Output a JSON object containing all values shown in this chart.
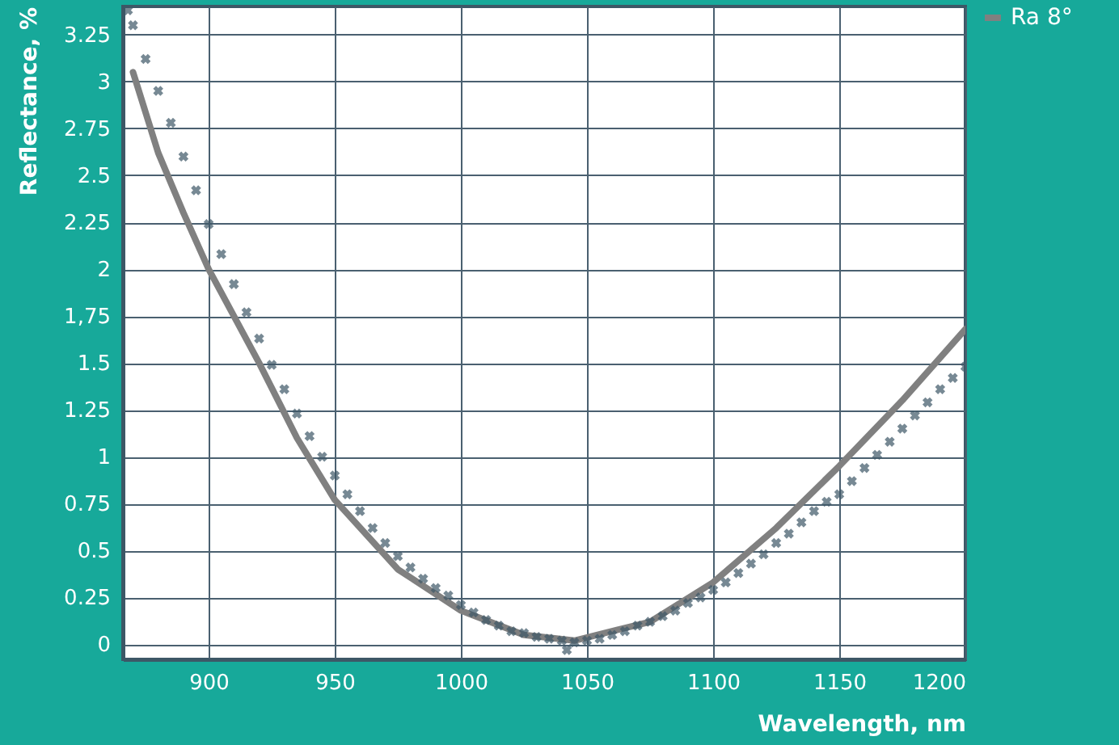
{
  "chart_data": {
    "type": "line",
    "xlabel": "Wavelength, nm",
    "ylabel": "Reflectance, %",
    "xlim": [
      866,
      1200
    ],
    "xticks": [
      900,
      950,
      1000,
      1050,
      1100,
      1150,
      1200
    ],
    "ylim": [
      -0.08,
      3.4
    ],
    "yticks": [
      0,
      0.25,
      0.5,
      0.75,
      1,
      1.25,
      1.5,
      {
        "value": 1.75,
        "label": "1,75"
      },
      2,
      2.25,
      2.5,
      2.75,
      3,
      3.25
    ],
    "grid": true,
    "legend": "top right",
    "series": [
      {
        "name": "Ra 8°",
        "type": "line",
        "color": "#808080",
        "x": [
          870,
          880,
          890,
          900,
          920,
          935,
          950,
          975,
          1000,
          1025,
          1045,
          1075,
          1100,
          1125,
          1150,
          1175,
          1200
        ],
        "values": [
          3.05,
          2.62,
          2.3,
          2.0,
          1.5,
          1.1,
          0.77,
          0.4,
          0.18,
          0.05,
          0.02,
          0.12,
          0.33,
          0.62,
          0.95,
          1.3,
          1.68
        ]
      },
      {
        "type": "scatter",
        "marker": "cross",
        "color": "#3d5766",
        "x": [
          868,
          870,
          875,
          880,
          885,
          890,
          895,
          900,
          905,
          910,
          915,
          920,
          925,
          930,
          935,
          940,
          945,
          950,
          955,
          960,
          965,
          970,
          975,
          980,
          985,
          990,
          995,
          1000,
          1005,
          1010,
          1015,
          1020,
          1025,
          1030,
          1035,
          1040,
          1042,
          1045,
          1050,
          1055,
          1060,
          1065,
          1070,
          1075,
          1080,
          1085,
          1090,
          1095,
          1100,
          1105,
          1110,
          1115,
          1120,
          1125,
          1130,
          1135,
          1140,
          1145,
          1150,
          1155,
          1160,
          1165,
          1170,
          1175,
          1180,
          1185,
          1190,
          1195,
          1200
        ],
        "values": [
          3.38,
          3.3,
          3.12,
          2.95,
          2.78,
          2.6,
          2.42,
          2.24,
          2.08,
          1.92,
          1.77,
          1.63,
          1.49,
          1.36,
          1.23,
          1.11,
          1.0,
          0.9,
          0.8,
          0.71,
          0.62,
          0.54,
          0.47,
          0.41,
          0.35,
          0.3,
          0.26,
          0.21,
          0.17,
          0.13,
          0.1,
          0.07,
          0.06,
          0.04,
          0.03,
          0.02,
          -0.03,
          0.01,
          0.02,
          0.03,
          0.05,
          0.07,
          0.1,
          0.12,
          0.15,
          0.18,
          0.22,
          0.25,
          0.29,
          0.33,
          0.38,
          0.43,
          0.48,
          0.54,
          0.59,
          0.65,
          0.71,
          0.76,
          0.8,
          0.87,
          0.94,
          1.01,
          1.08,
          1.15,
          1.22,
          1.29,
          1.36,
          1.42,
          1.48
        ]
      }
    ]
  }
}
